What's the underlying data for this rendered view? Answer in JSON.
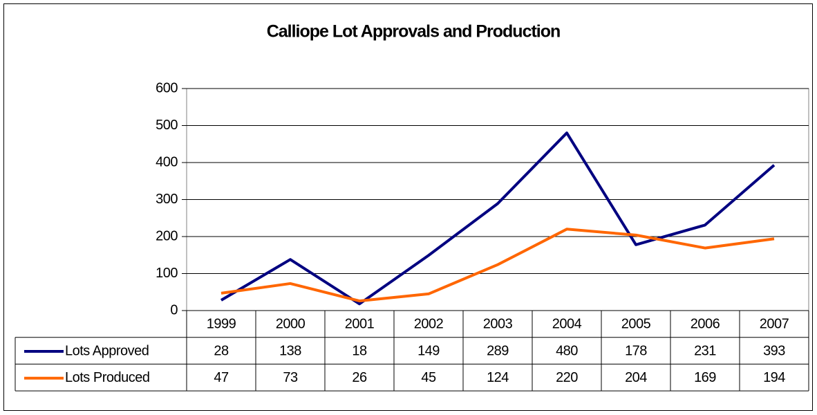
{
  "chart_data": {
    "type": "line",
    "title": "Calliope Lot Approvals and Production",
    "categories": [
      "1999",
      "2000",
      "2001",
      "2002",
      "2003",
      "2004",
      "2005",
      "2006",
      "2007"
    ],
    "series": [
      {
        "name": "Lots Approved",
        "color": "#000080",
        "values": [
          28,
          138,
          18,
          149,
          289,
          480,
          178,
          231,
          393
        ]
      },
      {
        "name": "Lots Produced",
        "color": "#ff6600",
        "values": [
          47,
          73,
          26,
          45,
          124,
          220,
          204,
          169,
          194
        ]
      }
    ],
    "ylim": [
      0,
      600
    ],
    "yticks": [
      0,
      100,
      200,
      300,
      400,
      500,
      600
    ],
    "grid": true,
    "data_table": true
  }
}
